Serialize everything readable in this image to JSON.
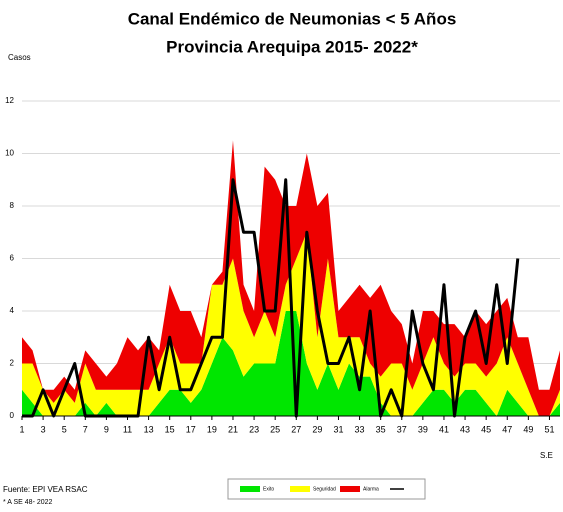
{
  "chart_data": {
    "type": "area",
    "stacked": true,
    "title": "Canal Endémico de Neumonias < 5 Años",
    "subtitle": "Provincia Arequipa  2015- 2022*",
    "y_label": "Casos",
    "x_label": "S.E",
    "source": "Fuente: EPI VEA RSAC",
    "note": "* A  SE 48- 2022",
    "x": [
      1,
      2,
      3,
      4,
      5,
      6,
      7,
      8,
      9,
      10,
      11,
      12,
      13,
      14,
      15,
      16,
      17,
      18,
      19,
      20,
      21,
      22,
      23,
      24,
      25,
      26,
      27,
      28,
      29,
      30,
      31,
      32,
      33,
      34,
      35,
      36,
      37,
      38,
      39,
      40,
      41,
      42,
      43,
      44,
      45,
      46,
      47,
      48,
      49,
      50,
      51,
      52
    ],
    "xlim": [
      1,
      52
    ],
    "xticks": [
      1,
      3,
      5,
      7,
      9,
      11,
      13,
      15,
      17,
      19,
      21,
      23,
      25,
      27,
      29,
      31,
      33,
      35,
      37,
      39,
      41,
      43,
      45,
      47,
      49,
      51
    ],
    "ylim": [
      0,
      12
    ],
    "yticks": [
      0,
      2,
      4,
      6,
      8,
      10,
      12
    ],
    "grid": true,
    "series": [
      {
        "name": "Exito",
        "color": "#00e600",
        "values": [
          1,
          0.5,
          0,
          0,
          0,
          0,
          0.5,
          0,
          0.5,
          0,
          0,
          0,
          0,
          0.5,
          1,
          1,
          0.5,
          1,
          2,
          3,
          2.5,
          1.5,
          2,
          2,
          2,
          4,
          4,
          2,
          1,
          2,
          1,
          2,
          1.5,
          1.5,
          0.5,
          0,
          0,
          0,
          0.5,
          1,
          1,
          0.5,
          1,
          1,
          0.5,
          0,
          1,
          0.5,
          0,
          0,
          0,
          0.5
        ]
      },
      {
        "name": "Seguridad",
        "color": "#ffff00",
        "values": [
          1,
          1.5,
          1,
          0.5,
          1,
          0.5,
          1.5,
          1,
          0.5,
          1,
          1,
          1,
          1,
          1.5,
          2,
          1,
          1.5,
          1,
          3,
          2,
          3.5,
          2.5,
          1,
          2,
          1,
          1,
          2,
          5,
          2,
          4,
          2,
          1,
          1.5,
          0.5,
          1,
          2,
          2,
          1,
          1.5,
          2,
          1,
          1,
          1,
          1,
          1,
          2,
          2,
          1.5,
          1,
          0,
          0,
          0.5
        ]
      },
      {
        "name": "Alarma",
        "color": "#ee0000",
        "values": [
          1,
          0.5,
          0,
          0.5,
          0.5,
          0.5,
          0.5,
          1,
          0.5,
          1,
          2,
          1.5,
          2,
          0.5,
          2,
          2,
          2,
          1,
          0,
          0.5,
          4.5,
          1,
          1,
          5.5,
          6,
          3,
          2,
          3,
          5,
          2.5,
          1,
          1.5,
          2,
          2.5,
          3.5,
          2,
          1.5,
          1,
          2,
          1,
          1.5,
          2,
          1,
          2,
          2,
          2,
          1.5,
          1,
          2,
          1,
          1,
          1.5
        ]
      },
      {
        "name": null,
        "type": "line",
        "color": "#000000",
        "values": [
          0,
          0,
          1,
          0,
          1,
          2,
          0,
          0,
          0,
          0,
          0,
          0,
          3,
          1,
          3,
          1,
          1,
          2,
          3,
          3,
          9,
          7,
          7,
          4,
          4,
          9,
          0,
          7,
          4,
          2,
          2,
          3,
          1,
          4,
          0,
          1,
          0,
          4,
          2,
          1,
          5,
          0,
          3,
          4,
          2,
          5,
          2,
          6,
          null,
          null,
          null,
          null
        ]
      }
    ]
  }
}
